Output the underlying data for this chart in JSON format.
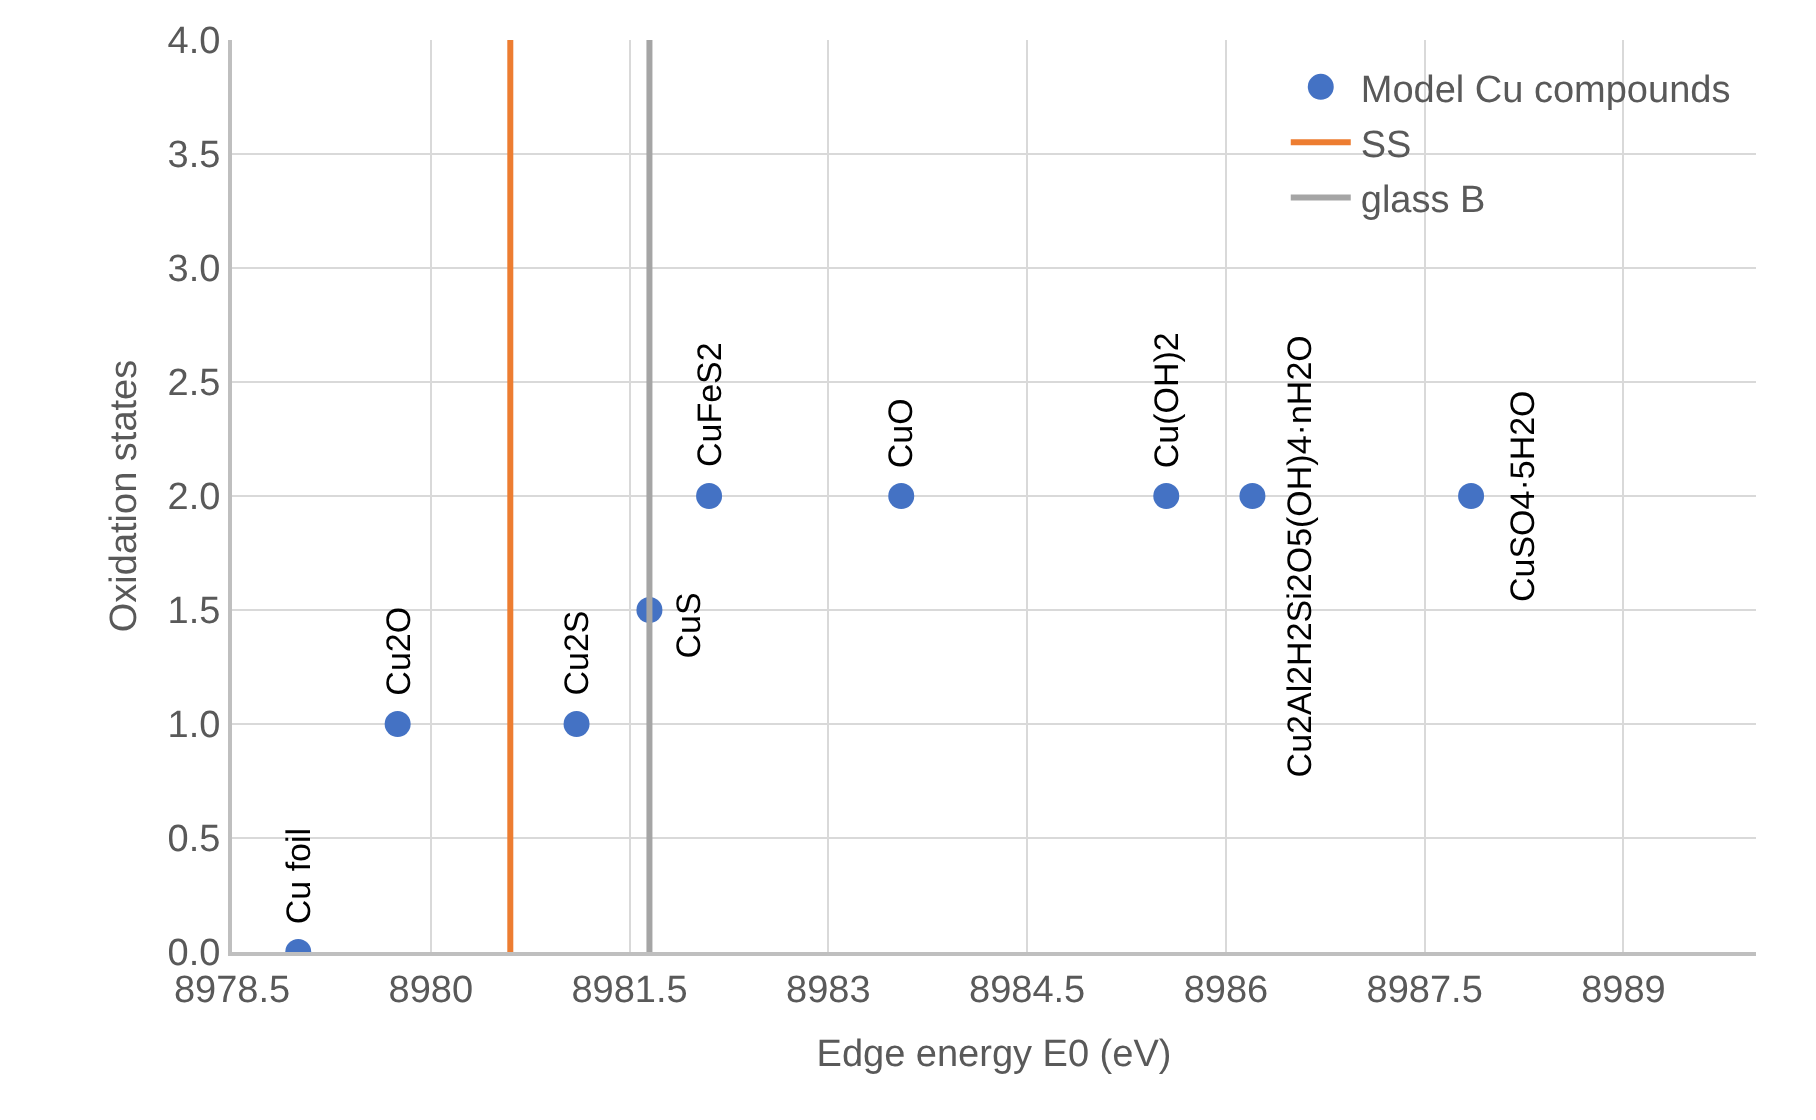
{
  "chart_data": {
    "type": "scatter",
    "xlabel": "Edge energy E0 (eV)",
    "ylabel": "Oxidation states",
    "series": [
      {
        "name": "Model Cu compounds",
        "color": "#4472c4",
        "x": [
          8979.0,
          8979.75,
          8981.1,
          8981.65,
          8982.1,
          8983.55,
          8985.55,
          8986.2,
          8987.85
        ],
        "values": [
          0,
          1,
          1,
          1.5,
          2,
          2,
          2,
          2,
          2
        ]
      },
      {
        "name": "SS",
        "type": "line",
        "marker": "none",
        "color": "#ed7d31",
        "x": [
          8980.6,
          8980.6
        ],
        "values": [
          0,
          4
        ]
      },
      {
        "name": "glass B",
        "type": "line",
        "marker": "none",
        "color": "#a5a5a5",
        "x": [
          8981.65,
          8981.65
        ],
        "values": [
          0,
          4
        ]
      }
    ],
    "annotations": [
      {
        "text": "Cu foil",
        "x": 8979.0,
        "y": 0
      },
      {
        "text": "Cu2O",
        "x": 8979.75,
        "y": 1
      },
      {
        "text": "Cu2S",
        "x": 8981.1,
        "y": 1
      },
      {
        "text": "CuS",
        "x": 8981.65,
        "y": 1.5
      },
      {
        "text": "CuFeS2",
        "x": 8982.1,
        "y": 2
      },
      {
        "text": "CuO",
        "x": 8983.55,
        "y": 2
      },
      {
        "text": "Cu(OH)2",
        "x": 8985.55,
        "y": 2
      },
      {
        "text": "Cu2Al2H2Si2O5(OH)4·nH2O",
        "x": 8986.2,
        "y": 2
      },
      {
        "text": "CuSO4·5H2O",
        "x": 8987.85,
        "y": 2
      }
    ],
    "xlim": [
      8978.5,
      8990
    ],
    "xticks": [
      8978.5,
      8980,
      8981.5,
      8983,
      8984.5,
      8986,
      8987.5,
      8989
    ],
    "ylim": [
      0,
      4
    ],
    "yticks": [
      {
        "value": 0,
        "label": "0.0"
      },
      {
        "value": 0.5,
        "label": "0.5"
      },
      {
        "value": 1,
        "label": "1.0"
      },
      {
        "value": 1.5,
        "label": "1.5"
      },
      {
        "value": 2,
        "label": "2.0"
      },
      {
        "value": 2.5,
        "label": "2.5"
      },
      {
        "value": 3,
        "label": "3.0"
      },
      {
        "value": 3.5,
        "label": "3.5"
      },
      {
        "value": 4,
        "label": "4.0"
      }
    ],
    "grid": true,
    "legend": "top right",
    "marker": "circle"
  }
}
